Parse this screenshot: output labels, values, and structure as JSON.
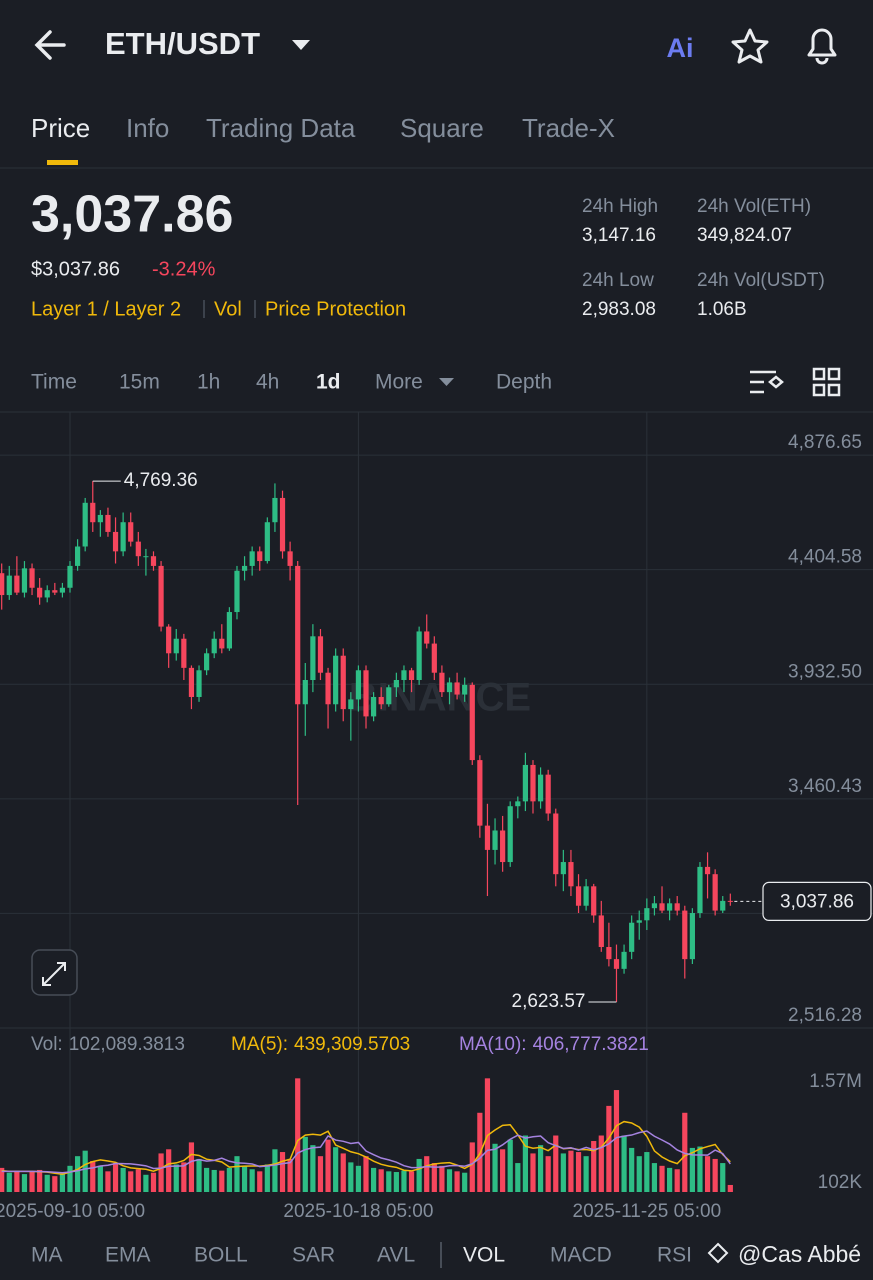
{
  "header": {
    "pair": "ETH/USDT"
  },
  "tabs": {
    "items": [
      "Price",
      "Info",
      "Trading Data",
      "Square",
      "Trade-X"
    ],
    "active": 0
  },
  "price": {
    "last": "3,037.86",
    "usd": "$3,037.86",
    "change": "-3.24%"
  },
  "tags": [
    "Layer 1 / Layer 2",
    "Vol",
    "Price Protection"
  ],
  "stats": [
    {
      "label": "24h High",
      "value": "3,147.16"
    },
    {
      "label": "24h Vol(ETH)",
      "value": "349,824.07"
    },
    {
      "label": "24h Low",
      "value": "2,983.08"
    },
    {
      "label": "24h Vol(USDT)",
      "value": "1.06B"
    }
  ],
  "intervals": {
    "items": [
      "Time",
      "15m",
      "1h",
      "4h",
      "1d",
      "More",
      "Depth"
    ],
    "active": 4
  },
  "chart_data": {
    "type": "candlestick",
    "up_color": "#2ebd85",
    "down_color": "#f6465d",
    "grid": true,
    "ylim": [
      2516.28,
      5054.1
    ],
    "yticks": [
      {
        "value": 4876.65,
        "label": "4,876.65"
      },
      {
        "value": 4404.58,
        "label": "4,404.58"
      },
      {
        "value": 3932.5,
        "label": "3,932.50"
      },
      {
        "value": 3460.43,
        "label": "3,460.43"
      },
      {
        "value": 2988.35,
        "label": null
      },
      {
        "value": 2516.28,
        "label": "2,516.28"
      }
    ],
    "xticks": [
      {
        "value": 9,
        "label": "2025-09-10 05:00"
      },
      {
        "value": 47,
        "label": "2025-10-18 05:00"
      },
      {
        "value": 85,
        "label": "2025-11-25 05:00"
      }
    ],
    "high_label": "4,769.36",
    "low_label": "2,623.57",
    "last_label": "3,037.86",
    "candles": [
      [
        4390,
        4430,
        4240,
        4300
      ],
      [
        4300,
        4420,
        4280,
        4380
      ],
      [
        4380,
        4460,
        4300,
        4310
      ],
      [
        4310,
        4440,
        4290,
        4410
      ],
      [
        4410,
        4430,
        4300,
        4330
      ],
      [
        4330,
        4370,
        4260,
        4290
      ],
      [
        4290,
        4340,
        4270,
        4320
      ],
      [
        4320,
        4350,
        4300,
        4310
      ],
      [
        4310,
        4350,
        4290,
        4330
      ],
      [
        4330,
        4440,
        4310,
        4420
      ],
      [
        4420,
        4530,
        4400,
        4500
      ],
      [
        4500,
        4700,
        4480,
        4680
      ],
      [
        4680,
        4769.36,
        4560,
        4600
      ],
      [
        4600,
        4650,
        4540,
        4630
      ],
      [
        4630,
        4660,
        4540,
        4560
      ],
      [
        4560,
        4620,
        4430,
        4480
      ],
      [
        4480,
        4640,
        4460,
        4600
      ],
      [
        4600,
        4640,
        4500,
        4520
      ],
      [
        4520,
        4560,
        4420,
        4460
      ],
      [
        4460,
        4490,
        4380,
        4460
      ],
      [
        4460,
        4480,
        4400,
        4420
      ],
      [
        4420,
        4440,
        4150,
        4170
      ],
      [
        4170,
        4180,
        4000,
        4060
      ],
      [
        4060,
        4160,
        4030,
        4120
      ],
      [
        4120,
        4140,
        3950,
        4000
      ],
      [
        4000,
        4010,
        3830,
        3880
      ],
      [
        3880,
        4010,
        3860,
        3990
      ],
      [
        3990,
        4080,
        3970,
        4060
      ],
      [
        4060,
        4150,
        4040,
        4120
      ],
      [
        4120,
        4180,
        4060,
        4080
      ],
      [
        4080,
        4250,
        4070,
        4230
      ],
      [
        4230,
        4420,
        4200,
        4400
      ],
      [
        4400,
        4460,
        4360,
        4420
      ],
      [
        4420,
        4500,
        4380,
        4480
      ],
      [
        4480,
        4500,
        4400,
        4440
      ],
      [
        4440,
        4620,
        4430,
        4600
      ],
      [
        4600,
        4760,
        4560,
        4700
      ],
      [
        4700,
        4730,
        4450,
        4480
      ],
      [
        4480,
        4520,
        4360,
        4420
      ],
      [
        4420,
        4440,
        3435,
        3850
      ],
      [
        3850,
        4020,
        3720,
        3950
      ],
      [
        3950,
        4180,
        3900,
        4130
      ],
      [
        4130,
        4160,
        3950,
        3980
      ],
      [
        3980,
        4000,
        3750,
        3850
      ],
      [
        3850,
        4080,
        3820,
        4050
      ],
      [
        4050,
        4080,
        3780,
        3830
      ],
      [
        3830,
        3900,
        3700,
        3870
      ],
      [
        3870,
        4010,
        3820,
        3990
      ],
      [
        3990,
        4010,
        3750,
        3800
      ],
      [
        3800,
        3900,
        3780,
        3880
      ],
      [
        3880,
        3920,
        3830,
        3850
      ],
      [
        3850,
        3930,
        3840,
        3920
      ],
      [
        3920,
        3980,
        3880,
        3950
      ],
      [
        3950,
        4010,
        3900,
        3990
      ],
      [
        3990,
        4000,
        3900,
        3950
      ],
      [
        3950,
        4170,
        3930,
        4150
      ],
      [
        4150,
        4220,
        4080,
        4100
      ],
      [
        4100,
        4130,
        3950,
        3980
      ],
      [
        3980,
        4010,
        3880,
        3900
      ],
      [
        3900,
        3960,
        3850,
        3940
      ],
      [
        3940,
        3980,
        3870,
        3890
      ],
      [
        3890,
        3960,
        3860,
        3930
      ],
      [
        3930,
        3940,
        3600,
        3620
      ],
      [
        3620,
        3640,
        3300,
        3350
      ],
      [
        3350,
        3440,
        3060,
        3250
      ],
      [
        3250,
        3380,
        3190,
        3330
      ],
      [
        3330,
        3390,
        3160,
        3200
      ],
      [
        3200,
        3450,
        3180,
        3430
      ],
      [
        3430,
        3470,
        3380,
        3450
      ],
      [
        3450,
        3650,
        3410,
        3600
      ],
      [
        3600,
        3620,
        3400,
        3450
      ],
      [
        3450,
        3590,
        3420,
        3560
      ],
      [
        3560,
        3580,
        3370,
        3400
      ],
      [
        3400,
        3420,
        3100,
        3150
      ],
      [
        3150,
        3250,
        3080,
        3200
      ],
      [
        3200,
        3250,
        3060,
        3100
      ],
      [
        3100,
        3150,
        2990,
        3020
      ],
      [
        3020,
        3130,
        3000,
        3100
      ],
      [
        3100,
        3110,
        2950,
        2980
      ],
      [
        2980,
        3040,
        2830,
        2850
      ],
      [
        2850,
        2950,
        2770,
        2800
      ],
      [
        2800,
        2860,
        2623.57,
        2760
      ],
      [
        2760,
        2860,
        2740,
        2830
      ],
      [
        2830,
        2980,
        2800,
        2950
      ],
      [
        2950,
        3000,
        2880,
        2960
      ],
      [
        2960,
        3050,
        2920,
        3010
      ],
      [
        3010,
        3060,
        2980,
        3030
      ],
      [
        3030,
        3100,
        2990,
        3000
      ],
      [
        3000,
        3050,
        2960,
        3030
      ],
      [
        3030,
        3060,
        2980,
        3000
      ],
      [
        3000,
        3020,
        2720,
        2800
      ],
      [
        2800,
        3010,
        2780,
        2990
      ],
      [
        2990,
        3200,
        2970,
        3180
      ],
      [
        3180,
        3240,
        3050,
        3150
      ],
      [
        3150,
        3170,
        2980,
        3000
      ],
      [
        3000,
        3060,
        2990,
        3040
      ],
      [
        3040,
        3070,
        3020,
        3037.86
      ]
    ],
    "volume": {
      "label": "Vol:",
      "last_label": "102,089.3813",
      "ylim": [
        0,
        1800000
      ],
      "yticks": [
        {
          "value": 1570000,
          "label": "1.57M"
        },
        {
          "value": 102000,
          "label": "102K"
        }
      ],
      "values": [
        350000,
        280000,
        310000,
        260000,
        300000,
        320000,
        250000,
        230000,
        260000,
        380000,
        520000,
        600000,
        450000,
        380000,
        300000,
        420000,
        350000,
        300000,
        330000,
        250000,
        280000,
        560000,
        620000,
        400000,
        430000,
        720000,
        480000,
        350000,
        320000,
        310000,
        350000,
        520000,
        380000,
        330000,
        300000,
        400000,
        620000,
        580000,
        480000,
        1650000,
        800000,
        680000,
        520000,
        760000,
        650000,
        560000,
        430000,
        380000,
        520000,
        350000,
        330000,
        300000,
        290000,
        310000,
        300000,
        480000,
        520000,
        420000,
        380000,
        330000,
        300000,
        280000,
        720000,
        1150000,
        1650000,
        700000,
        620000,
        760000,
        420000,
        820000,
        560000,
        680000,
        520000,
        820000,
        560000,
        600000,
        580000,
        520000,
        740000,
        820000,
        1250000,
        1480000,
        820000,
        640000,
        520000,
        580000,
        420000,
        380000,
        350000,
        330000,
        1150000,
        640000,
        660000,
        520000,
        480000,
        420000,
        102089.3813
      ],
      "series": [
        {
          "name": "MA(5):",
          "color": "#f0b90b",
          "last_label": "439,309.5703",
          "values": [
            310000,
            300000,
            300000,
            300000,
            300000,
            294000,
            288000,
            272000,
            258000,
            288000,
            328000,
            398000,
            442000,
            466000,
            450000,
            430000,
            380000,
            350000,
            340000,
            330000,
            302000,
            344000,
            408000,
            422000,
            458000,
            546000,
            530000,
            476000,
            460000,
            436000,
            362000,
            370000,
            376000,
            378000,
            376000,
            386000,
            406000,
            446000,
            476000,
            746000,
            826000,
            838000,
            826000,
            882000,
            682000,
            634000,
            584000,
            556000,
            508000,
            448000,
            402000,
            376000,
            358000,
            316000,
            306000,
            336000,
            380000,
            406000,
            420000,
            426000,
            390000,
            342000,
            402000,
            556000,
            820000,
            900000,
            968000,
            976000,
            830000,
            664000,
            636000,
            648000,
            600000,
            680000,
            628000,
            636000,
            616000,
            616000,
            600000,
            652000,
            782000,
            962000,
            1022000,
            1002000,
            942000,
            808000,
            596000,
            508000,
            450000,
            412000,
            526000,
            570000,
            626000,
            660000,
            690000,
            544000,
            439309.5703
          ]
        },
        {
          "name": "MA(10):",
          "color": "#a583e0",
          "last_label": "406,777.3821",
          "values": [
            300000,
            300000,
            300000,
            300000,
            300000,
            297000,
            294000,
            286000,
            279000,
            291000,
            308000,
            335000,
            350000,
            377000,
            389000,
            414000,
            411000,
            408000,
            395000,
            380000,
            341000,
            347000,
            374000,
            376000,
            380000,
            445000,
            469000,
            449000,
            459000,
            491000,
            446000,
            423000,
            418000,
            407000,
            369000,
            378000,
            391000,
            412000,
            426000,
            566000,
            616000,
            642000,
            651000,
            814000,
            754000,
            736000,
            705000,
            719000,
            595000,
            541000,
            493000,
            466000,
            433000,
            382000,
            354000,
            356000,
            369000,
            361000,
            363000,
            381000,
            385000,
            374000,
            411000,
            491000,
            605000,
            621000,
            685000,
            766000,
            825000,
            782000,
            802000,
            812000,
            715000,
            672000,
            632000,
            642000,
            608000,
            648000,
            614000,
            644000,
            699000,
            789000,
            811000,
            827000,
            862000,
            885000,
            809000,
            755000,
            696000,
            610000,
            561000,
            539000,
            538000,
            536000,
            608000,
            557000,
            406777.3821
          ]
        }
      ]
    }
  },
  "watermark": "BINANCE",
  "indicators": {
    "items": [
      "MA",
      "EMA",
      "BOLL",
      "SAR",
      "AVL",
      "VOL",
      "MACD",
      "RSI"
    ],
    "active": 5
  },
  "footer_watermark": "@Cas Abbé"
}
